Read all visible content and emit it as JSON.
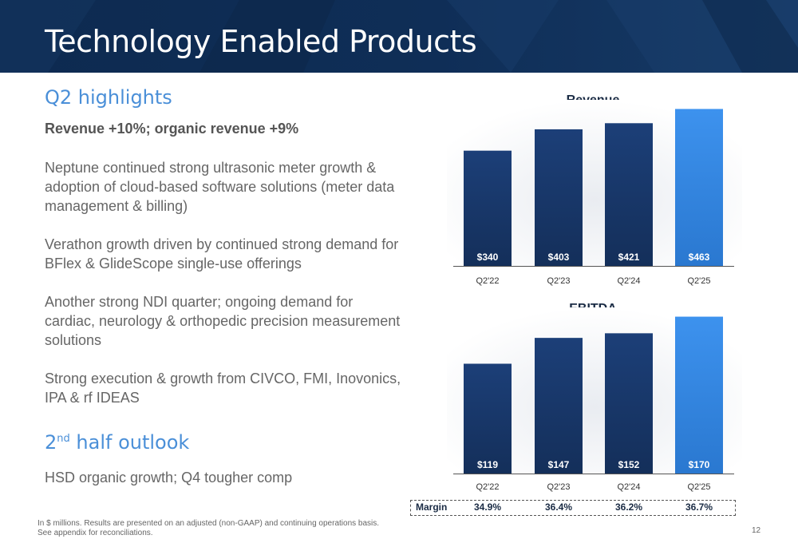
{
  "header": {
    "title": "Technology Enabled Products"
  },
  "highlights": {
    "heading": "Q2 highlights",
    "summary": "Revenue +10%; organic revenue +9%",
    "paragraphs": [
      "Neptune continued strong ultrasonic meter growth & adoption of cloud-based software solutions (meter data management & billing)",
      "Verathon growth driven by continued strong demand for BFlex & GlideScope single-use offerings",
      "Another strong NDI quarter; ongoing demand for cardiac, neurology & orthopedic precision measurement solutions",
      "Strong execution & growth from CIVCO, FMI, Inovonics, IPA & rf IDEAS"
    ]
  },
  "outlook": {
    "heading_prefix": "2",
    "heading_sup": "nd",
    "heading_suffix": " half outlook",
    "text": "HSD organic growth; Q4 tougher comp"
  },
  "footer": {
    "note_line1": "In $ millions. Results are presented on an adjusted (non-GAAP) and continuing operations basis.",
    "note_line2": "See appendix for reconciliations.",
    "page_number": "12"
  },
  "colors": {
    "banner": "#0f2e57",
    "bar_dark": "#1a3a6b",
    "bar_highlight": "#3b8ee8",
    "accent_text": "#4a8fd8"
  },
  "chart_data": [
    {
      "type": "bar",
      "title": "Revenue",
      "categories": [
        "Q2'22",
        "Q2'23",
        "Q2'24",
        "Q2'25"
      ],
      "values": [
        340,
        403,
        421,
        463
      ],
      "value_labels": [
        "$340",
        "$403",
        "$421",
        "$463"
      ],
      "ylim": [
        0,
        490
      ],
      "grid": false
    },
    {
      "type": "bar",
      "title": "EBITDA",
      "categories": [
        "Q2'22",
        "Q2'23",
        "Q2'24",
        "Q2'25"
      ],
      "values": [
        119,
        147,
        152,
        170
      ],
      "value_labels": [
        "$119",
        "$147",
        "$152",
        "$170"
      ],
      "ylim": [
        0,
        180
      ],
      "grid": false,
      "margin_label": "Margin",
      "margins": [
        "34.9%",
        "36.4%",
        "36.2%",
        "36.7%"
      ]
    }
  ]
}
